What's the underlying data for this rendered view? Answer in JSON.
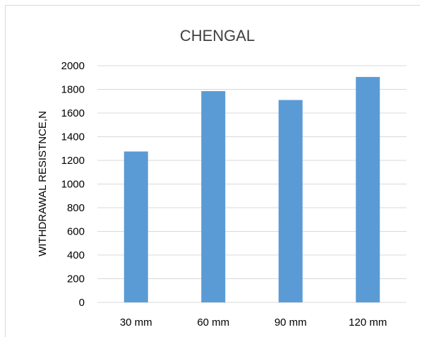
{
  "chart_data": {
    "type": "bar",
    "title": "CHENGAL",
    "xlabel": "",
    "ylabel": "WITHDRAWAL RESISTNCE,N",
    "categories": [
      "30 mm",
      "60 mm",
      "90 mm",
      "120 mm"
    ],
    "values": [
      1275,
      1785,
      1710,
      1905
    ],
    "ylim": [
      0,
      2000
    ],
    "yticks": [
      0,
      200,
      400,
      600,
      800,
      1000,
      1200,
      1400,
      1600,
      1800,
      2000
    ],
    "grid": true,
    "legend": "none",
    "bar_color": "#5b9bd5",
    "grid_color": "#d9d9d9",
    "text_color": "#404040"
  }
}
